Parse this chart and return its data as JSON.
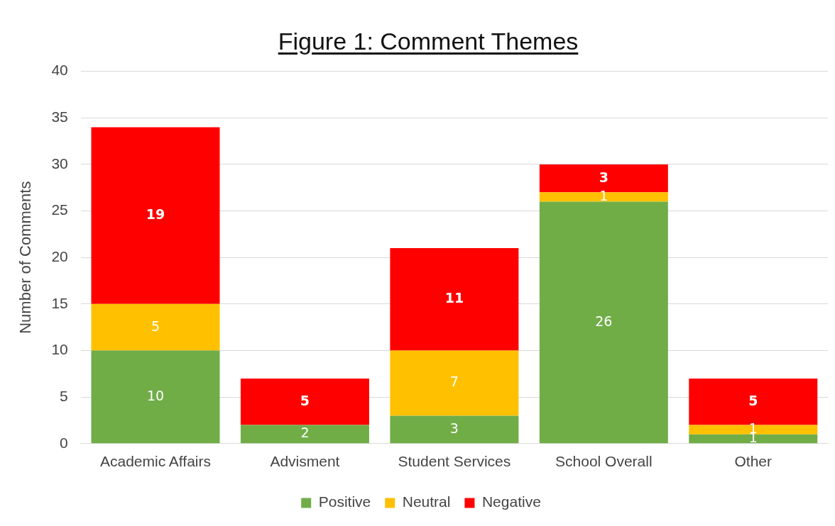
{
  "chart_data": {
    "type": "bar",
    "title": "Figure 1: Comment Themes",
    "ylabel": "Number of Comments",
    "categories": [
      "Academic Affairs",
      "Advisment",
      "Student Services",
      "School Overall",
      "Other"
    ],
    "series": [
      {
        "name": "Positive",
        "color": "#70ad47",
        "values": [
          10,
          2,
          3,
          26,
          1
        ],
        "value_labels": [
          "10",
          "2",
          "3",
          "26",
          "1"
        ]
      },
      {
        "name": "Neutral",
        "color": "#ffc000",
        "values": [
          5,
          0,
          7,
          1,
          1
        ],
        "value_labels": [
          "5",
          null,
          "7",
          "1",
          "1"
        ]
      },
      {
        "name": "Negative",
        "color": "#ff0000",
        "values": [
          19,
          5,
          11,
          3,
          5
        ],
        "value_labels": [
          "19",
          "5",
          "11",
          "3",
          "5"
        ]
      }
    ],
    "stacked": true,
    "ylim": [
      0,
      40
    ],
    "yticks": [
      0,
      5,
      10,
      15,
      20,
      25,
      30,
      35,
      40
    ],
    "grid": "y",
    "legend": "bottom"
  }
}
